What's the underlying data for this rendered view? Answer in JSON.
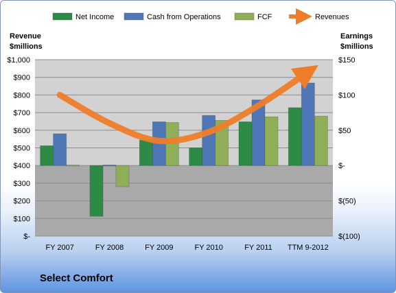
{
  "chart_data": {
    "type": "bar",
    "categories": [
      "FY 2007",
      "FY 2008",
      "FY 2009",
      "FY 2010",
      "FY 2011",
      "TTM 9-2012"
    ],
    "series": [
      {
        "name": "Net Income",
        "type": "bar",
        "axis": "right",
        "color": "#2e8b45",
        "values": [
          28,
          -72,
          36,
          25,
          62,
          82
        ]
      },
      {
        "name": "Cash from Operations",
        "type": "bar",
        "axis": "right",
        "color": "#4f77b8",
        "values": [
          45,
          1,
          62,
          71,
          93,
          117
        ]
      },
      {
        "name": "FCF",
        "type": "bar",
        "axis": "right",
        "color": "#8fae5a",
        "values": [
          0,
          -30,
          61,
          64,
          69,
          70
        ]
      },
      {
        "name": "Revenues",
        "type": "line",
        "axis": "left",
        "color": "#ee7d2a",
        "values": [
          800,
          640,
          540,
          590,
          740,
          930
        ]
      }
    ],
    "left_axis": {
      "label_line1": "Revenue",
      "label_line2": "$millions",
      "ylim": [
        0,
        1000
      ],
      "ticks": [
        "$1,000",
        "$900",
        "$800",
        "$700",
        "$600",
        "$500",
        "$400",
        "$300",
        "$200",
        "$100",
        "$-"
      ]
    },
    "right_axis": {
      "label_line1": "Earnings",
      "label_line2": "$millions",
      "ylim": [
        -100,
        150
      ],
      "ticks": [
        "$150",
        "$100",
        "$50",
        "$-",
        "$(50)",
        "$(100)"
      ]
    },
    "grid": true,
    "legend": "top",
    "background": {
      "above_zero": "#d2d2d2",
      "below_zero": "#a9a9a9"
    }
  },
  "footer": {
    "title": "Select Comfort"
  }
}
